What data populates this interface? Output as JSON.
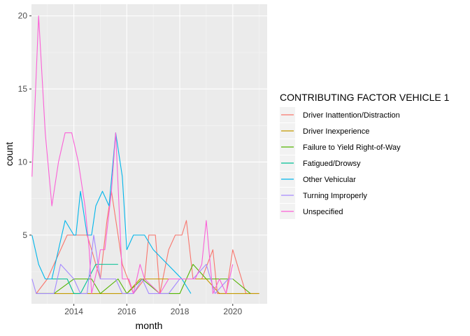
{
  "chart_data": {
    "type": "line",
    "xlabel": "month",
    "ylabel": "count",
    "x_ticks": [
      "2014",
      "2016",
      "2018",
      "2020"
    ],
    "y_ticks": [
      "5",
      "10",
      "15",
      "20"
    ],
    "xlim": [
      2012.4,
      2021.3
    ],
    "ylim": [
      0.3,
      20.8
    ],
    "grid": true,
    "legend": {
      "title": "CONTRIBUTING FACTOR VEHICLE 1",
      "placement": "right"
    },
    "series": [
      {
        "name": "Driver Inattention/Distraction",
        "color": "#F8766D",
        "points": [
          [
            2012.58,
            1
          ],
          [
            2013.0,
            2
          ],
          [
            2013.75,
            5
          ],
          [
            2014.5,
            5
          ],
          [
            2014.67,
            4
          ],
          [
            2014.83,
            3
          ],
          [
            2015.0,
            2
          ],
          [
            2015.25,
            6
          ],
          [
            2015.42,
            8
          ],
          [
            2015.67,
            5
          ],
          [
            2015.83,
            3
          ],
          [
            2016.25,
            1
          ],
          [
            2016.67,
            2
          ],
          [
            2016.83,
            5
          ],
          [
            2017.08,
            5
          ],
          [
            2017.25,
            1
          ],
          [
            2017.58,
            4
          ],
          [
            2017.83,
            5
          ],
          [
            2018.08,
            5
          ],
          [
            2018.25,
            6
          ],
          [
            2018.5,
            2
          ],
          [
            2018.83,
            2
          ],
          [
            2019.25,
            4
          ],
          [
            2019.42,
            1
          ],
          [
            2019.75,
            1
          ],
          [
            2020.0,
            4
          ],
          [
            2020.5,
            1
          ],
          [
            2021.0,
            1
          ]
        ]
      },
      {
        "name": "Driver Inexperience",
        "color": "#C49A00",
        "points": [
          [
            2012.58,
            1
          ],
          [
            2015.0,
            1
          ],
          [
            2016.0,
            1
          ],
          [
            2016.5,
            2
          ],
          [
            2017.08,
            2
          ],
          [
            2018.5,
            2
          ],
          [
            2019.0,
            2
          ],
          [
            2019.5,
            1
          ],
          [
            2021.0,
            1
          ]
        ]
      },
      {
        "name": "Failure to Yield Right-of-Way",
        "color": "#53B400",
        "points": [
          [
            2012.58,
            1
          ],
          [
            2013.25,
            1
          ],
          [
            2014.0,
            2
          ],
          [
            2014.67,
            2
          ],
          [
            2015.0,
            1
          ],
          [
            2015.67,
            2
          ],
          [
            2016.0,
            1
          ],
          [
            2016.58,
            2
          ],
          [
            2017.25,
            1
          ],
          [
            2018.0,
            1
          ],
          [
            2018.5,
            3
          ],
          [
            2019.0,
            2
          ],
          [
            2019.5,
            2
          ],
          [
            2020.0,
            2
          ],
          [
            2020.67,
            1
          ]
        ]
      },
      {
        "name": "Fatigued/Drowsy",
        "color": "#00C094",
        "points": [
          [
            2013.0,
            2
          ],
          [
            2013.75,
            2
          ],
          [
            2014.0,
            1
          ],
          [
            2014.25,
            1
          ],
          [
            2014.83,
            3
          ],
          [
            2015.67,
            3
          ]
        ]
      },
      {
        "name": "Other Vehicular",
        "color": "#00B6EB",
        "points": [
          [
            2012.42,
            5
          ],
          [
            2012.67,
            3
          ],
          [
            2012.92,
            2
          ],
          [
            2013.17,
            2
          ],
          [
            2013.67,
            6
          ],
          [
            2014.0,
            5
          ],
          [
            2014.08,
            5
          ],
          [
            2014.25,
            8
          ],
          [
            2014.5,
            5
          ],
          [
            2014.67,
            5
          ],
          [
            2014.83,
            7
          ],
          [
            2015.08,
            8
          ],
          [
            2015.33,
            7
          ],
          [
            2015.58,
            12
          ],
          [
            2015.83,
            9
          ],
          [
            2016.0,
            4
          ],
          [
            2016.25,
            5
          ],
          [
            2016.67,
            5
          ],
          [
            2017.0,
            4
          ],
          [
            2018.08,
            2
          ],
          [
            2018.42,
            1
          ]
        ]
      },
      {
        "name": "Turning Improperly",
        "color": "#A58AFF",
        "points": [
          [
            2012.42,
            2
          ],
          [
            2012.58,
            1
          ],
          [
            2013.0,
            1
          ],
          [
            2013.25,
            1
          ],
          [
            2013.5,
            3
          ],
          [
            2014.0,
            2
          ],
          [
            2014.25,
            1
          ],
          [
            2014.5,
            1
          ],
          [
            2014.75,
            5
          ],
          [
            2015.0,
            2
          ],
          [
            2015.33,
            2
          ],
          [
            2015.58,
            2
          ],
          [
            2015.83,
            1
          ],
          [
            2016.25,
            1
          ],
          [
            2016.58,
            2
          ],
          [
            2016.83,
            1
          ],
          [
            2017.25,
            1
          ],
          [
            2017.58,
            1
          ],
          [
            2018.0,
            2
          ],
          [
            2018.5,
            2
          ],
          [
            2019.0,
            3
          ],
          [
            2019.33,
            1
          ],
          [
            2019.83,
            2
          ],
          [
            2020.0,
            2
          ]
        ]
      },
      {
        "name": "Unspecified",
        "color": "#FB61D7",
        "points": [
          [
            2012.42,
            9
          ],
          [
            2012.67,
            20
          ],
          [
            2012.92,
            12
          ],
          [
            2013.17,
            7
          ],
          [
            2013.42,
            10
          ],
          [
            2013.67,
            12
          ],
          [
            2013.92,
            12
          ],
          [
            2014.17,
            10
          ],
          [
            2014.42,
            7
          ],
          [
            2014.58,
            4
          ],
          [
            2014.67,
            1
          ],
          [
            2014.92,
            3
          ],
          [
            2015.0,
            4
          ],
          [
            2015.17,
            4
          ],
          [
            2015.42,
            8
          ],
          [
            2015.58,
            12
          ],
          [
            2015.83,
            2
          ],
          [
            2016.08,
            2
          ],
          [
            2016.25,
            1
          ],
          [
            2016.5,
            3
          ],
          [
            2016.67,
            2
          ],
          [
            2017.25,
            1
          ],
          [
            2017.58,
            2
          ],
          [
            2017.83,
            2
          ],
          [
            2018.25,
            2
          ],
          [
            2018.58,
            2
          ],
          [
            2018.83,
            3
          ],
          [
            2019.0,
            6
          ],
          [
            2019.25,
            1
          ],
          [
            2019.5,
            2
          ],
          [
            2019.75,
            1
          ],
          [
            2020.0,
            3
          ]
        ]
      }
    ]
  }
}
